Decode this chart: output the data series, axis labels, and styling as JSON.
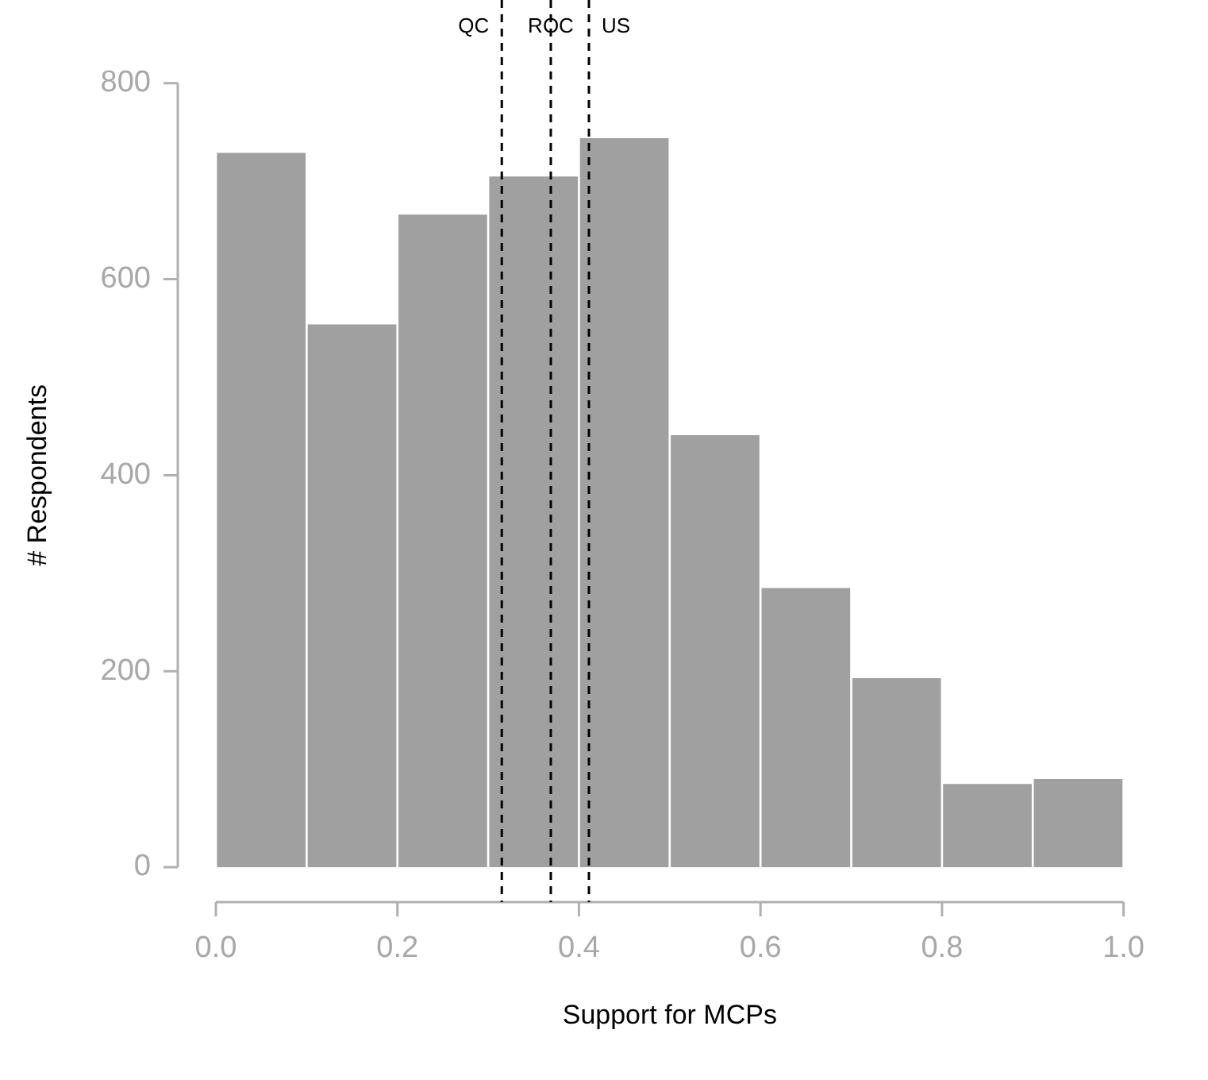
{
  "chart_data": {
    "type": "histogram",
    "xlabel": "Support for MCPs",
    "ylabel": "# Respondents",
    "bins": [
      0,
      0.1,
      0.2,
      0.3,
      0.4,
      0.5,
      0.6,
      0.7,
      0.8,
      0.9,
      1.0
    ],
    "values": [
      730,
      555,
      667,
      706,
      745,
      442,
      286,
      194,
      86,
      91
    ],
    "color": "#a0a0a0",
    "xlim": [
      0,
      1
    ],
    "xticks": [
      {
        "value": 0,
        "label": "0.0"
      },
      0.2,
      0.4,
      0.6,
      0.8,
      {
        "value": 1,
        "label": "1.0"
      }
    ],
    "ylim": [
      0,
      800
    ],
    "yticks": [
      0,
      200,
      400,
      600,
      800
    ],
    "grid": false,
    "legend": false,
    "ref_lines": [
      {
        "axis": "x",
        "value": 0.315,
        "label": "QC",
        "color": "#000000",
        "line_style": "dashed"
      },
      {
        "axis": "x",
        "value": 0.369,
        "label": "ROC",
        "color": "#000000",
        "line_style": "dashed"
      },
      {
        "axis": "x",
        "value": 0.411,
        "label": "US",
        "color": "#000000",
        "line_style": "dashed"
      }
    ]
  }
}
